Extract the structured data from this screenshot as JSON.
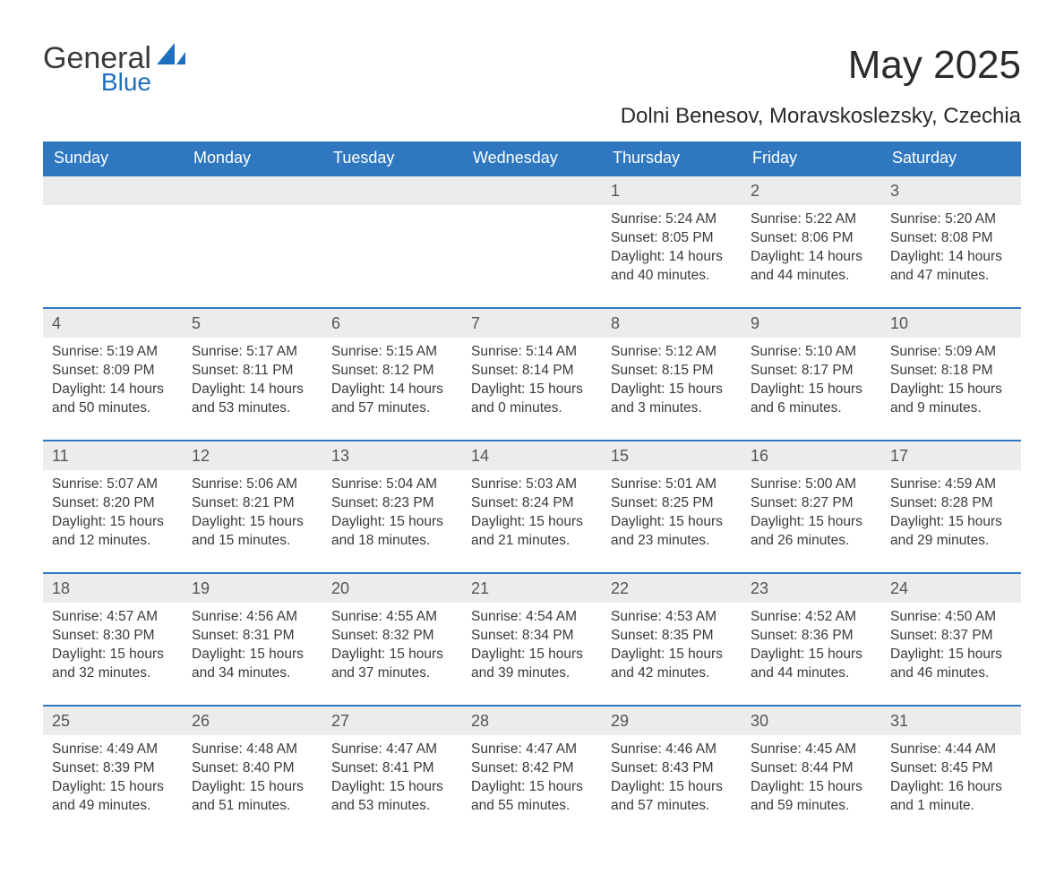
{
  "logo": {
    "word1": "General",
    "word2": "Blue"
  },
  "title": "May 2025",
  "location": "Dolni Benesov, Moravskoslezsky, Czechia",
  "colors": {
    "header_bg": "#2f78bf",
    "header_text": "#ffffff",
    "daynum_bg": "#ececec",
    "week_border": "#2f78bf",
    "body_text": "#3a3a3a",
    "logo_blue": "#1f6fbf"
  },
  "day_headers": [
    "Sunday",
    "Monday",
    "Tuesday",
    "Wednesday",
    "Thursday",
    "Friday",
    "Saturday"
  ],
  "weeks": [
    [
      {
        "empty": true
      },
      {
        "empty": true
      },
      {
        "empty": true
      },
      {
        "empty": true
      },
      {
        "num": "1",
        "sunrise": "Sunrise: 5:24 AM",
        "sunset": "Sunset: 8:05 PM",
        "daylight1": "Daylight: 14 hours",
        "daylight2": "and 40 minutes."
      },
      {
        "num": "2",
        "sunrise": "Sunrise: 5:22 AM",
        "sunset": "Sunset: 8:06 PM",
        "daylight1": "Daylight: 14 hours",
        "daylight2": "and 44 minutes."
      },
      {
        "num": "3",
        "sunrise": "Sunrise: 5:20 AM",
        "sunset": "Sunset: 8:08 PM",
        "daylight1": "Daylight: 14 hours",
        "daylight2": "and 47 minutes."
      }
    ],
    [
      {
        "num": "4",
        "sunrise": "Sunrise: 5:19 AM",
        "sunset": "Sunset: 8:09 PM",
        "daylight1": "Daylight: 14 hours",
        "daylight2": "and 50 minutes."
      },
      {
        "num": "5",
        "sunrise": "Sunrise: 5:17 AM",
        "sunset": "Sunset: 8:11 PM",
        "daylight1": "Daylight: 14 hours",
        "daylight2": "and 53 minutes."
      },
      {
        "num": "6",
        "sunrise": "Sunrise: 5:15 AM",
        "sunset": "Sunset: 8:12 PM",
        "daylight1": "Daylight: 14 hours",
        "daylight2": "and 57 minutes."
      },
      {
        "num": "7",
        "sunrise": "Sunrise: 5:14 AM",
        "sunset": "Sunset: 8:14 PM",
        "daylight1": "Daylight: 15 hours",
        "daylight2": "and 0 minutes."
      },
      {
        "num": "8",
        "sunrise": "Sunrise: 5:12 AM",
        "sunset": "Sunset: 8:15 PM",
        "daylight1": "Daylight: 15 hours",
        "daylight2": "and 3 minutes."
      },
      {
        "num": "9",
        "sunrise": "Sunrise: 5:10 AM",
        "sunset": "Sunset: 8:17 PM",
        "daylight1": "Daylight: 15 hours",
        "daylight2": "and 6 minutes."
      },
      {
        "num": "10",
        "sunrise": "Sunrise: 5:09 AM",
        "sunset": "Sunset: 8:18 PM",
        "daylight1": "Daylight: 15 hours",
        "daylight2": "and 9 minutes."
      }
    ],
    [
      {
        "num": "11",
        "sunrise": "Sunrise: 5:07 AM",
        "sunset": "Sunset: 8:20 PM",
        "daylight1": "Daylight: 15 hours",
        "daylight2": "and 12 minutes."
      },
      {
        "num": "12",
        "sunrise": "Sunrise: 5:06 AM",
        "sunset": "Sunset: 8:21 PM",
        "daylight1": "Daylight: 15 hours",
        "daylight2": "and 15 minutes."
      },
      {
        "num": "13",
        "sunrise": "Sunrise: 5:04 AM",
        "sunset": "Sunset: 8:23 PM",
        "daylight1": "Daylight: 15 hours",
        "daylight2": "and 18 minutes."
      },
      {
        "num": "14",
        "sunrise": "Sunrise: 5:03 AM",
        "sunset": "Sunset: 8:24 PM",
        "daylight1": "Daylight: 15 hours",
        "daylight2": "and 21 minutes."
      },
      {
        "num": "15",
        "sunrise": "Sunrise: 5:01 AM",
        "sunset": "Sunset: 8:25 PM",
        "daylight1": "Daylight: 15 hours",
        "daylight2": "and 23 minutes."
      },
      {
        "num": "16",
        "sunrise": "Sunrise: 5:00 AM",
        "sunset": "Sunset: 8:27 PM",
        "daylight1": "Daylight: 15 hours",
        "daylight2": "and 26 minutes."
      },
      {
        "num": "17",
        "sunrise": "Sunrise: 4:59 AM",
        "sunset": "Sunset: 8:28 PM",
        "daylight1": "Daylight: 15 hours",
        "daylight2": "and 29 minutes."
      }
    ],
    [
      {
        "num": "18",
        "sunrise": "Sunrise: 4:57 AM",
        "sunset": "Sunset: 8:30 PM",
        "daylight1": "Daylight: 15 hours",
        "daylight2": "and 32 minutes."
      },
      {
        "num": "19",
        "sunrise": "Sunrise: 4:56 AM",
        "sunset": "Sunset: 8:31 PM",
        "daylight1": "Daylight: 15 hours",
        "daylight2": "and 34 minutes."
      },
      {
        "num": "20",
        "sunrise": "Sunrise: 4:55 AM",
        "sunset": "Sunset: 8:32 PM",
        "daylight1": "Daylight: 15 hours",
        "daylight2": "and 37 minutes."
      },
      {
        "num": "21",
        "sunrise": "Sunrise: 4:54 AM",
        "sunset": "Sunset: 8:34 PM",
        "daylight1": "Daylight: 15 hours",
        "daylight2": "and 39 minutes."
      },
      {
        "num": "22",
        "sunrise": "Sunrise: 4:53 AM",
        "sunset": "Sunset: 8:35 PM",
        "daylight1": "Daylight: 15 hours",
        "daylight2": "and 42 minutes."
      },
      {
        "num": "23",
        "sunrise": "Sunrise: 4:52 AM",
        "sunset": "Sunset: 8:36 PM",
        "daylight1": "Daylight: 15 hours",
        "daylight2": "and 44 minutes."
      },
      {
        "num": "24",
        "sunrise": "Sunrise: 4:50 AM",
        "sunset": "Sunset: 8:37 PM",
        "daylight1": "Daylight: 15 hours",
        "daylight2": "and 46 minutes."
      }
    ],
    [
      {
        "num": "25",
        "sunrise": "Sunrise: 4:49 AM",
        "sunset": "Sunset: 8:39 PM",
        "daylight1": "Daylight: 15 hours",
        "daylight2": "and 49 minutes."
      },
      {
        "num": "26",
        "sunrise": "Sunrise: 4:48 AM",
        "sunset": "Sunset: 8:40 PM",
        "daylight1": "Daylight: 15 hours",
        "daylight2": "and 51 minutes."
      },
      {
        "num": "27",
        "sunrise": "Sunrise: 4:47 AM",
        "sunset": "Sunset: 8:41 PM",
        "daylight1": "Daylight: 15 hours",
        "daylight2": "and 53 minutes."
      },
      {
        "num": "28",
        "sunrise": "Sunrise: 4:47 AM",
        "sunset": "Sunset: 8:42 PM",
        "daylight1": "Daylight: 15 hours",
        "daylight2": "and 55 minutes."
      },
      {
        "num": "29",
        "sunrise": "Sunrise: 4:46 AM",
        "sunset": "Sunset: 8:43 PM",
        "daylight1": "Daylight: 15 hours",
        "daylight2": "and 57 minutes."
      },
      {
        "num": "30",
        "sunrise": "Sunrise: 4:45 AM",
        "sunset": "Sunset: 8:44 PM",
        "daylight1": "Daylight: 15 hours",
        "daylight2": "and 59 minutes."
      },
      {
        "num": "31",
        "sunrise": "Sunrise: 4:44 AM",
        "sunset": "Sunset: 8:45 PM",
        "daylight1": "Daylight: 16 hours",
        "daylight2": "and 1 minute."
      }
    ]
  ]
}
